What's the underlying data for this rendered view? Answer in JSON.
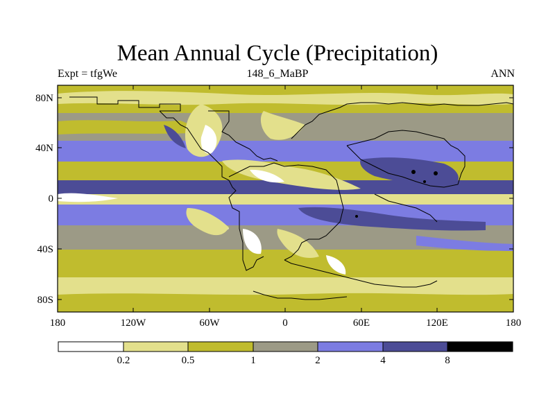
{
  "title": "Mean Annual Cycle (Precipitation)",
  "subtitle_left": "Expt = tfgWe",
  "subtitle_center": "148_6_MaBP",
  "subtitle_right": "ANN",
  "map": {
    "projection": "cylindrical equidistant",
    "lat_ticks": [
      "80N",
      "40N",
      "0",
      "40S",
      "80S"
    ],
    "lon_ticks": [
      "180",
      "120W",
      "60W",
      "0",
      "60E",
      "120E",
      "180"
    ]
  },
  "colorbar": {
    "colors": [
      "#ffffff",
      "#e3e08c",
      "#c0bc2e",
      "#9c9a86",
      "#7c7ce2",
      "#4c4c96",
      "#000000"
    ],
    "labels": [
      "0.2",
      "0.5",
      "1",
      "2",
      "4",
      "8"
    ]
  },
  "legend": {
    "colors": {
      "white": "#ffffff",
      "light": "#e3e08c",
      "olive": "#c0bc2e",
      "gray": "#9c9a86",
      "blue": "#7c7ce2",
      "dark": "#4c4c96",
      "black": "#000000"
    }
  }
}
